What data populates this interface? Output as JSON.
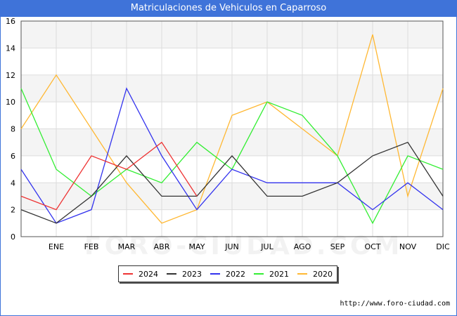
{
  "title": "Matriculaciones de Vehiculos en Caparroso",
  "watermark": "FORO-CIUDAD.COM",
  "footer_url": "http://www.foro-ciudad.com",
  "chart_data": {
    "type": "line",
    "title": "Matriculaciones de Vehiculos en Caparroso",
    "xlabel": "",
    "ylabel": "",
    "categories": [
      "",
      "ENE",
      "FEB",
      "MAR",
      "ABR",
      "MAY",
      "JUN",
      "JUL",
      "AGO",
      "SEP",
      "OCT",
      "NOV",
      "DIC"
    ],
    "ylim": [
      0,
      16
    ],
    "yticks": [
      0,
      2,
      4,
      6,
      8,
      10,
      12,
      14,
      16
    ],
    "grid": true,
    "legend_position": "bottom",
    "series": [
      {
        "name": "2024",
        "color": "#ee3333",
        "values": [
          3,
          2,
          6,
          5,
          7,
          3,
          null,
          null,
          null,
          null,
          null,
          null,
          null
        ]
      },
      {
        "name": "2023",
        "color": "#333333",
        "values": [
          2,
          1,
          3,
          6,
          3,
          3,
          6,
          3,
          3,
          4,
          6,
          7,
          3
        ]
      },
      {
        "name": "2022",
        "color": "#3333ee",
        "values": [
          5,
          1,
          2,
          11,
          6,
          2,
          5,
          4,
          4,
          4,
          2,
          4,
          2
        ]
      },
      {
        "name": "2021",
        "color": "#33ee33",
        "values": [
          11,
          5,
          3,
          5,
          4,
          7,
          5,
          10,
          9,
          6,
          1,
          6,
          5
        ]
      },
      {
        "name": "2020",
        "color": "#ffb833",
        "values": [
          8,
          12,
          8,
          4,
          1,
          2,
          9,
          10,
          8,
          6,
          15,
          3,
          11
        ]
      }
    ]
  }
}
